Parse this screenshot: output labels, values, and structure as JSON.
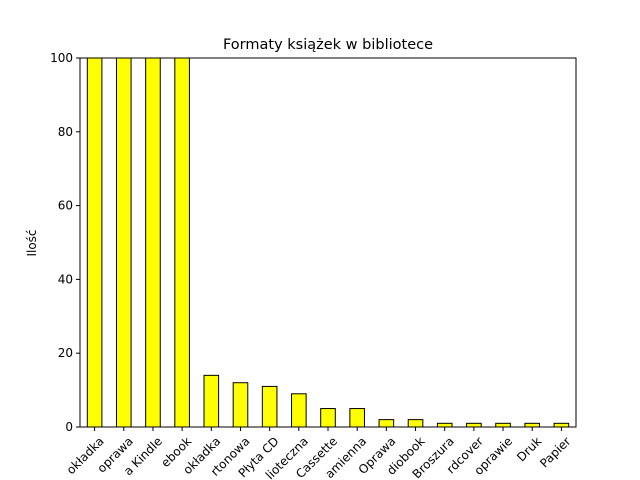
{
  "chart_data": {
    "type": "bar",
    "title": "Formaty książek w bibliotece",
    "xlabel": "",
    "ylabel": "Ilość",
    "ylim": [
      0,
      100
    ],
    "yticks": [
      0,
      20,
      40,
      60,
      80,
      100
    ],
    "categories": [
      "okładka",
      "oprawa",
      "a Kindle",
      "ebook",
      "okładka",
      "rtonowa",
      "Płyta CD",
      "lioteczna",
      "Cassette",
      "amienna",
      "Oprawa",
      "diobook",
      "Broszura",
      "rdcover",
      "oprawie",
      "Druk",
      "Papier"
    ],
    "values": [
      100,
      100,
      100,
      100,
      14,
      12,
      11,
      9,
      5,
      5,
      2,
      2,
      1,
      1,
      1,
      1,
      1
    ],
    "bar_color": "#ffff00",
    "edge_color": "#000000",
    "grid": false,
    "legend": "none"
  }
}
